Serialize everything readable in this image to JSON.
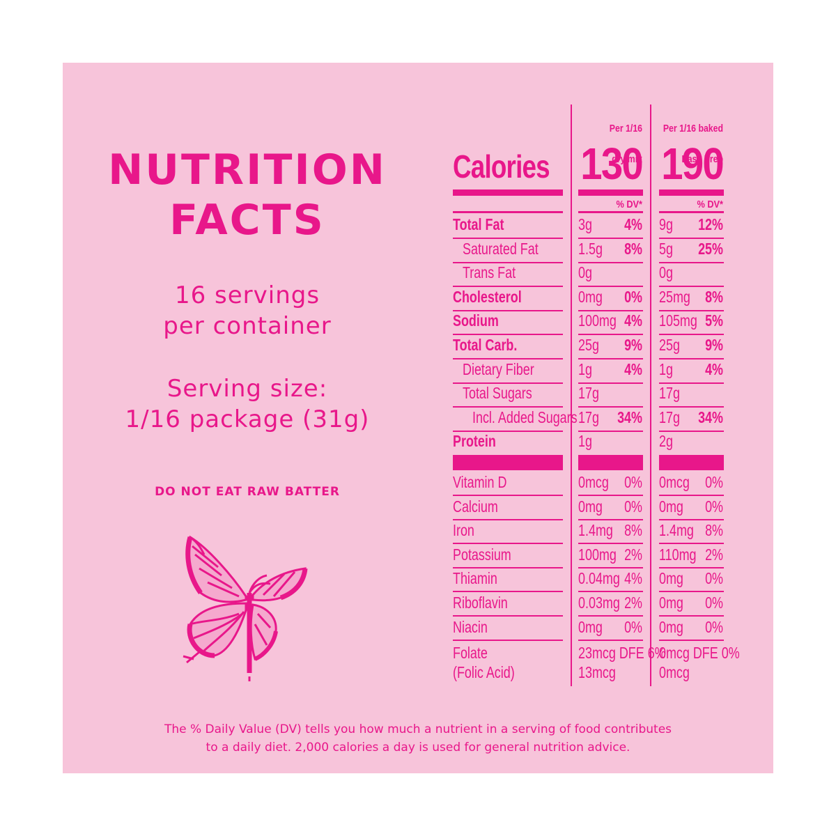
{
  "title_line1": "NUTRITION",
  "title_line2": "FACTS",
  "servings_line1": "16 servings",
  "servings_line2": "per container",
  "serving_size_line1": "Serving size:",
  "serving_size_line2": "1/16 package (31g)",
  "warning": "DO NOT EAT RAW BATTER",
  "columns": [
    {
      "head1": "Per 1/16",
      "head2": "dry mix",
      "calories": "130",
      "dv": "% DV*"
    },
    {
      "head1": "Per 1/16 baked",
      "head2": "Easy Prep",
      "calories": "190",
      "dv": "% DV*"
    }
  ],
  "calories_label": "Calories",
  "nutrients": [
    {
      "name": "Total Fat",
      "bold": true,
      "indent": 0,
      "c1": "3g",
      "d1": "4%",
      "c2": "9g",
      "d2": "12%"
    },
    {
      "name": "Saturated Fat",
      "bold": false,
      "indent": 1,
      "c1": "1.5g",
      "d1": "8%",
      "c2": "5g",
      "d2": "25%"
    },
    {
      "name": "Trans Fat",
      "bold": false,
      "indent": 1,
      "c1": "0g",
      "d1": "",
      "c2": "0g",
      "d2": ""
    },
    {
      "name": "Cholesterol",
      "bold": true,
      "indent": 0,
      "c1": "0mg",
      "d1": "0%",
      "c2": "25mg",
      "d2": "8%"
    },
    {
      "name": "Sodium",
      "bold": true,
      "indent": 0,
      "c1": "100mg",
      "d1": "4%",
      "c2": "105mg",
      "d2": "5%"
    },
    {
      "name": "Total Carb.",
      "bold": true,
      "indent": 0,
      "c1": "25g",
      "d1": "9%",
      "c2": "25g",
      "d2": "9%"
    },
    {
      "name": "Dietary Fiber",
      "bold": false,
      "indent": 1,
      "c1": "1g",
      "d1": "4%",
      "c2": "1g",
      "d2": "4%"
    },
    {
      "name": "Total Sugars",
      "bold": false,
      "indent": 1,
      "c1": "17g",
      "d1": "",
      "c2": "17g",
      "d2": ""
    },
    {
      "name": "Incl. Added Sugars",
      "bold": false,
      "indent": 2,
      "c1": "17g",
      "d1": "34%",
      "c2": "17g",
      "d2": "34%"
    },
    {
      "name": "Protein",
      "bold": true,
      "indent": 0,
      "c1": "1g",
      "d1": "",
      "c2": "2g",
      "d2": ""
    }
  ],
  "vitamins": [
    {
      "name": "Vitamin D",
      "c1": "0mcg",
      "d1": "0%",
      "c2": "0mcg",
      "d2": "0%"
    },
    {
      "name": "Calcium",
      "c1": "0mg",
      "d1": "0%",
      "c2": "0mg",
      "d2": "0%"
    },
    {
      "name": "Iron",
      "c1": "1.4mg",
      "d1": "8%",
      "c2": "1.4mg",
      "d2": "8%"
    },
    {
      "name": "Potassium",
      "c1": "100mg",
      "d1": "2%",
      "c2": "110mg",
      "d2": "2%"
    },
    {
      "name": "Thiamin",
      "c1": "0.04mg",
      "d1": "4%",
      "c2": "0mg",
      "d2": "0%"
    },
    {
      "name": "Riboflavin",
      "c1": "0.03mg",
      "d1": "2%",
      "c2": "0mg",
      "d2": "0%"
    },
    {
      "name": "Niacin",
      "c1": "0mg",
      "d1": "0%",
      "c2": "0mg",
      "d2": "0%"
    }
  ],
  "folate": {
    "name1": "Folate",
    "name2": "(Folic Acid)",
    "c1a": "23mcg DFE 6%",
    "c1b": "13mcg",
    "c2a": "0mcg DFE 0%",
    "c2b": "0mcg"
  },
  "footer_line1": "The % Daily Value (DV) tells you how much a nutrient in a serving of food contributes",
  "footer_line2": "to a daily diet. 2,000 calories a day is used for general nutrition advice.",
  "colors": {
    "accent": "#e8178a",
    "panel": "#f7c4da",
    "background": "#ffffff"
  },
  "illustration": "butterfly-icon"
}
